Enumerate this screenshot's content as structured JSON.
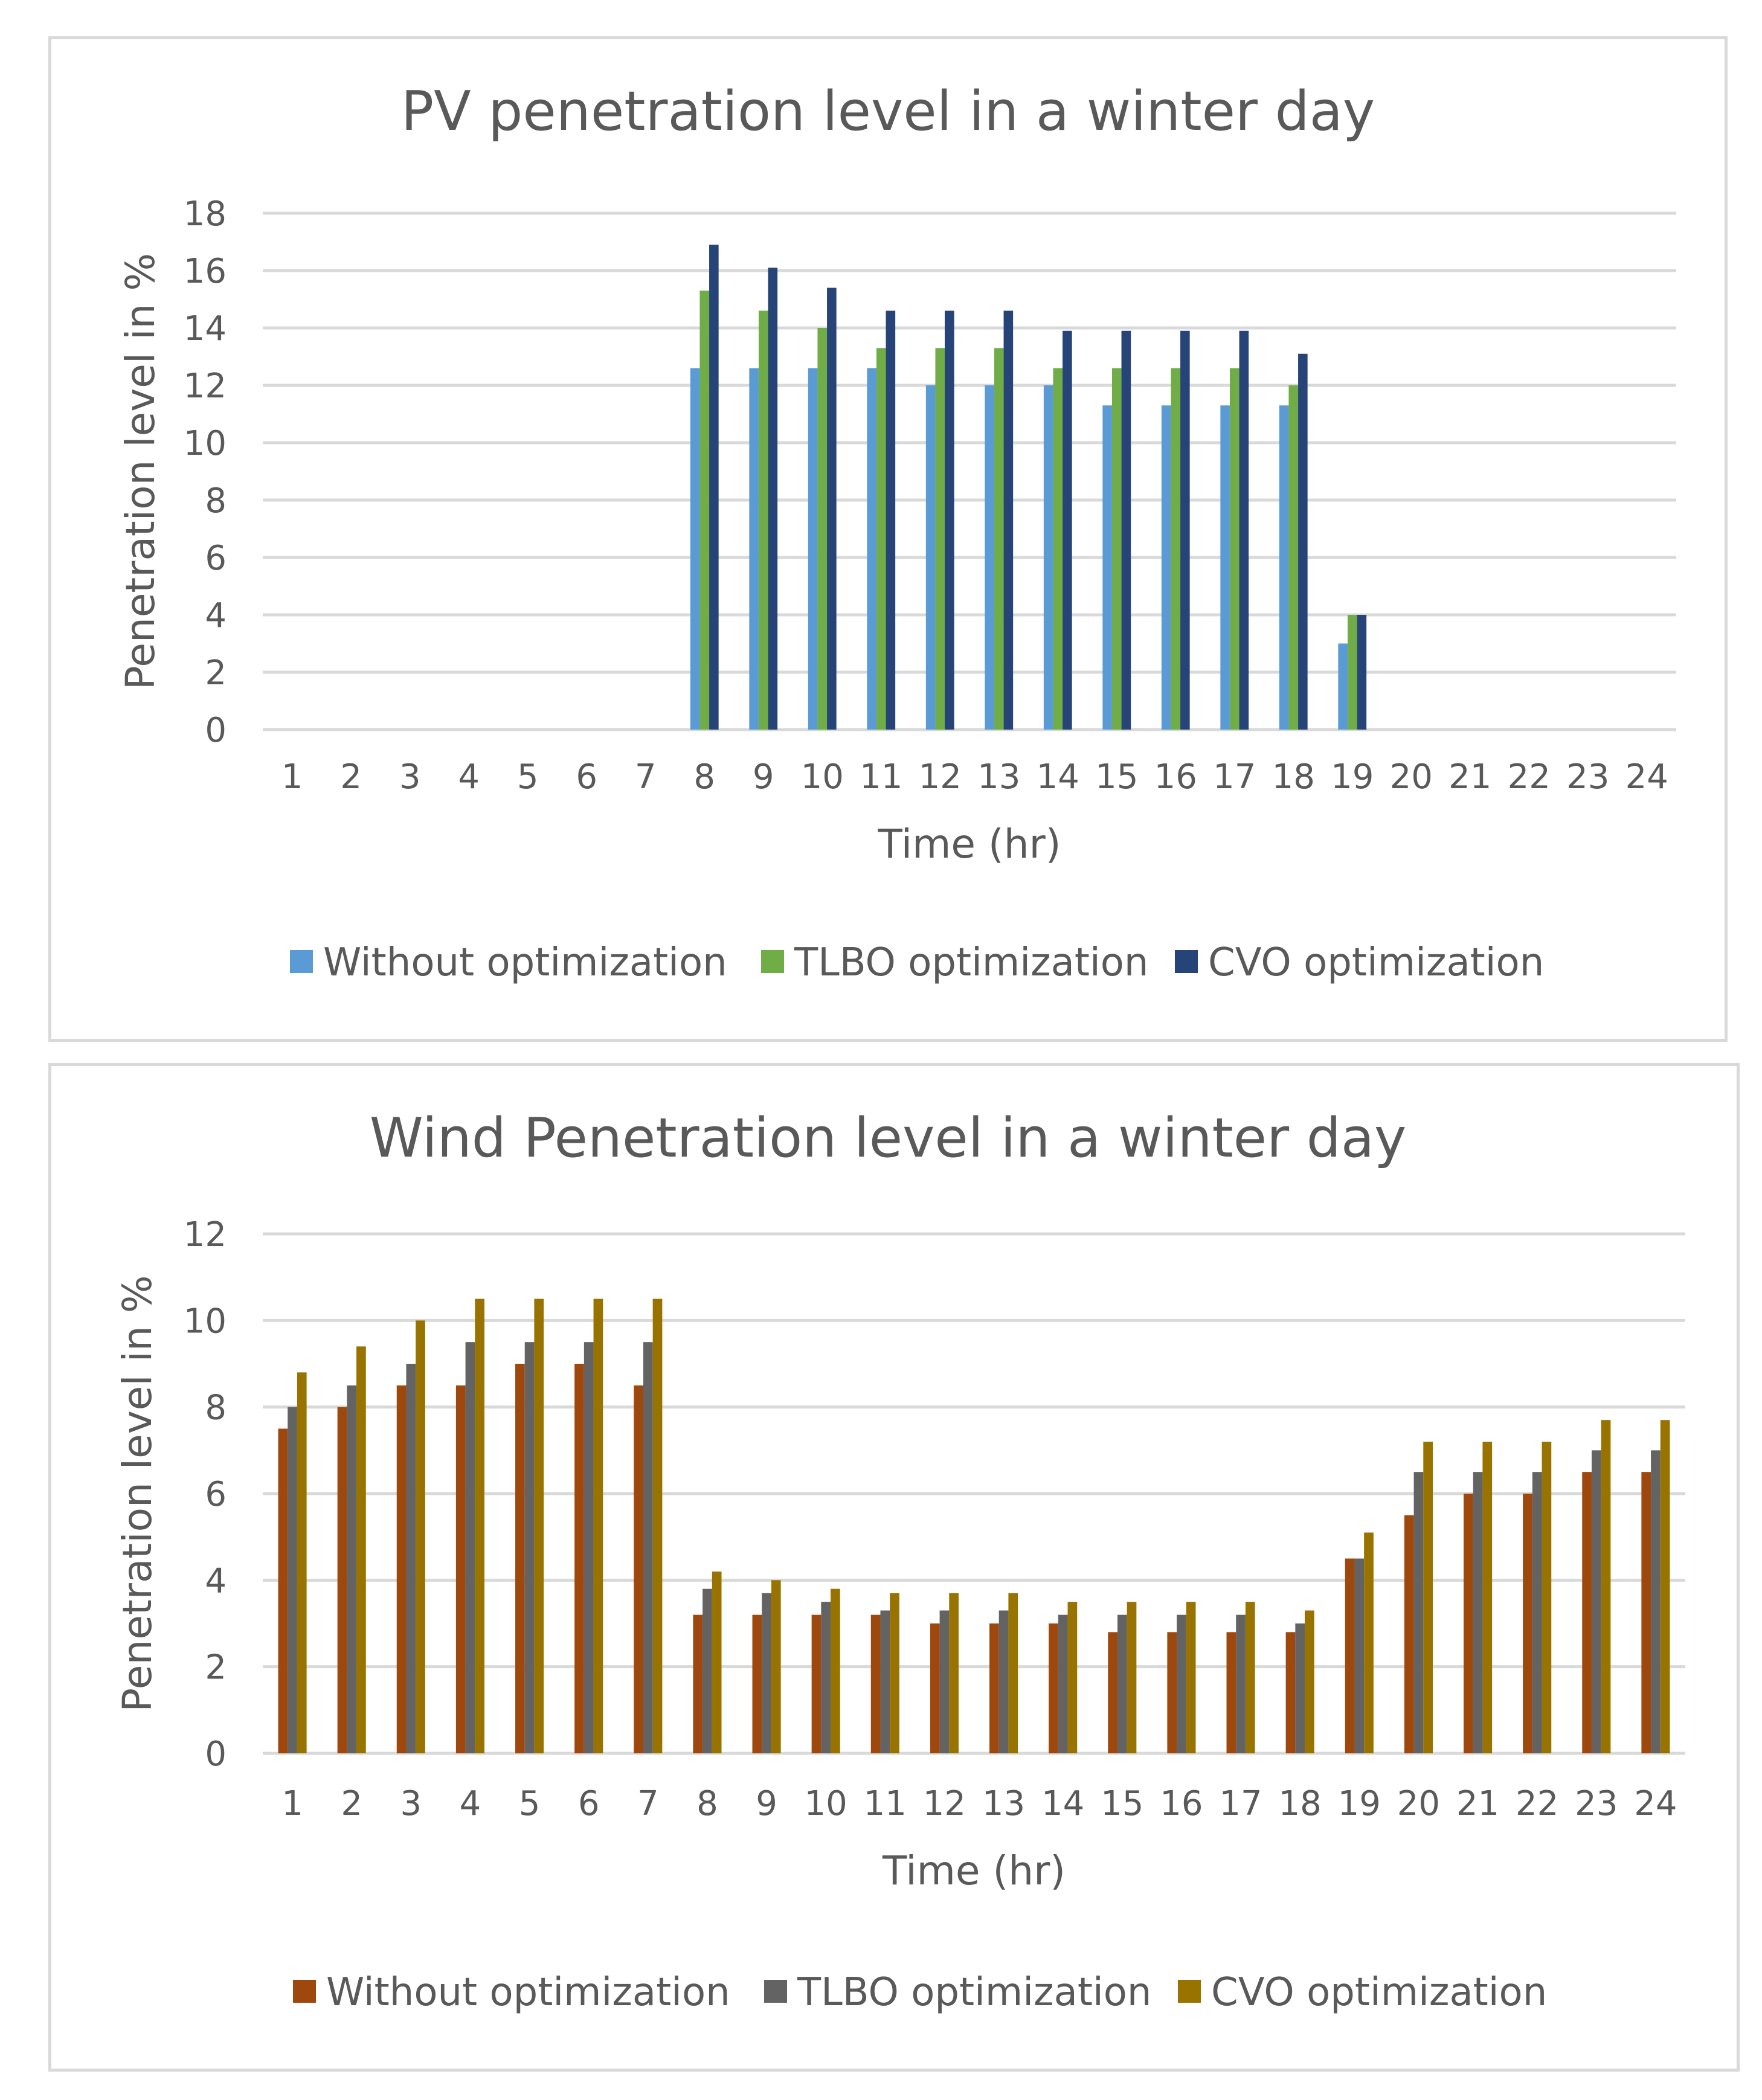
{
  "chart_data": [
    {
      "type": "bar",
      "title": "PV penetration level in a winter day",
      "xlabel": "Time (hr)",
      "ylabel": "Penetration level in %",
      "ylim": [
        0,
        18
      ],
      "yticks": [
        "0",
        "2",
        "4",
        "6",
        "8",
        "10",
        "12",
        "14",
        "16",
        "18"
      ],
      "categories": [
        "1",
        "2",
        "3",
        "4",
        "5",
        "6",
        "7",
        "8",
        "9",
        "10",
        "11",
        "12",
        "13",
        "14",
        "15",
        "16",
        "17",
        "18",
        "19",
        "20",
        "21",
        "22",
        "23",
        "24"
      ],
      "legend_position": "bottom",
      "series": [
        {
          "name": "Without optimization",
          "color": "#5b9bd5",
          "values": [
            0,
            0,
            0,
            0,
            0,
            0,
            0,
            12.6,
            12.6,
            12.6,
            12.6,
            12,
            12,
            12,
            11.3,
            11.3,
            11.3,
            11.3,
            3,
            0,
            0,
            0,
            0,
            0
          ]
        },
        {
          "name": "TLBO optimization",
          "color": "#70ad47",
          "values": [
            0,
            0,
            0,
            0,
            0,
            0,
            0,
            15.3,
            14.6,
            14,
            13.3,
            13.3,
            13.3,
            12.6,
            12.6,
            12.6,
            12.6,
            12,
            4,
            0,
            0,
            0,
            0,
            0
          ]
        },
        {
          "name": "CVO optimization",
          "color": "#264478",
          "values": [
            0,
            0,
            0,
            0,
            0,
            0,
            0,
            16.9,
            16.1,
            15.4,
            14.6,
            14.6,
            14.6,
            13.9,
            13.9,
            13.9,
            13.9,
            13.1,
            4,
            0,
            0,
            0,
            0,
            0
          ]
        }
      ]
    },
    {
      "type": "bar",
      "title": "Wind Penetration level in a winter day",
      "xlabel": "Time (hr)",
      "ylabel": "Penetration level in %",
      "ylim": [
        0,
        12
      ],
      "yticks": [
        "0",
        "2",
        "4",
        "6",
        "8",
        "10",
        "12"
      ],
      "categories": [
        "1",
        "2",
        "3",
        "4",
        "5",
        "6",
        "7",
        "8",
        "9",
        "10",
        "11",
        "12",
        "13",
        "14",
        "15",
        "16",
        "17",
        "18",
        "19",
        "20",
        "21",
        "22",
        "23",
        "24"
      ],
      "legend_position": "bottom",
      "series": [
        {
          "name": "Without optimization",
          "color": "#9e480e",
          "values": [
            7.5,
            8,
            8.5,
            8.5,
            9,
            9,
            8.5,
            3.2,
            3.2,
            3.2,
            3.2,
            3,
            3,
            3,
            2.8,
            2.8,
            2.8,
            2.8,
            4.5,
            5.5,
            6,
            6,
            6.5,
            6.5
          ]
        },
        {
          "name": "TLBO optimization",
          "color": "#636363",
          "values": [
            8,
            8.5,
            9,
            9.5,
            9.5,
            9.5,
            9.5,
            3.8,
            3.7,
            3.5,
            3.3,
            3.3,
            3.3,
            3.2,
            3.2,
            3.2,
            3.2,
            3,
            4.5,
            6.5,
            6.5,
            6.5,
            7,
            7
          ]
        },
        {
          "name": "CVO optimization",
          "color": "#997300",
          "values": [
            8.8,
            9.4,
            10,
            10.5,
            10.5,
            10.5,
            10.5,
            4.2,
            4,
            3.8,
            3.7,
            3.7,
            3.7,
            3.5,
            3.5,
            3.5,
            3.5,
            3.3,
            5.1,
            7.2,
            7.2,
            7.2,
            7.7,
            7.7
          ]
        }
      ]
    }
  ]
}
